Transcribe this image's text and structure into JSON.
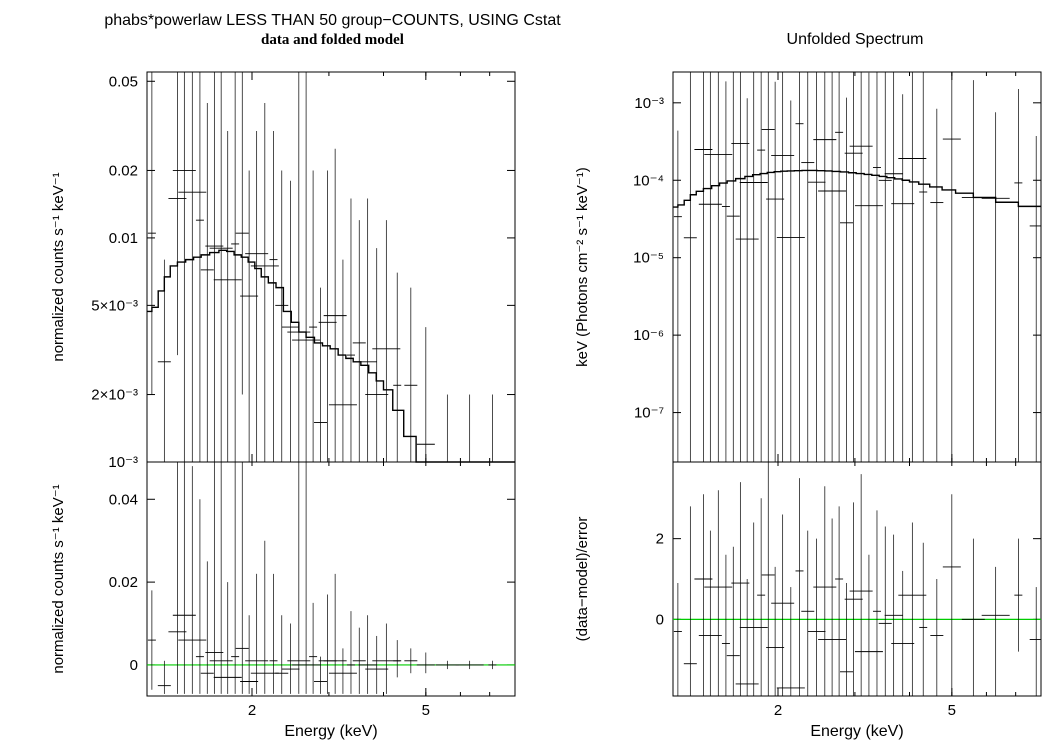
{
  "titles": {
    "left_main": "phabs*powerlaw LESS THAN 50 group−COUNTS, USING Cstat",
    "left_sub": "data and folded model",
    "right": "Unfolded Spectrum"
  },
  "colors": {
    "data": "#000000",
    "model": "#000000",
    "zero_line": "#00cc00",
    "frame": "#000000"
  },
  "chart_data": [
    {
      "id": "left_top",
      "type": "line",
      "ylabel": "normalized counts s⁻¹ keV⁻¹",
      "xscale": "log",
      "yscale": "log",
      "xlim": [
        1.15,
        8.0
      ],
      "ylim": [
        0.001,
        0.055
      ],
      "yticks": [
        {
          "v": 0.05,
          "label": "0.05"
        },
        {
          "v": 0.02,
          "label": "0.02"
        },
        {
          "v": 0.01,
          "label": "0.01"
        },
        {
          "v": 0.005,
          "label": "5×10⁻³"
        },
        {
          "v": 0.002,
          "label": "2×10⁻³"
        },
        {
          "v": 0.001,
          "label": "10⁻³"
        }
      ],
      "model_steps": [
        [
          1.15,
          0.0047
        ],
        [
          1.18,
          0.0049
        ],
        [
          1.22,
          0.0058
        ],
        [
          1.26,
          0.0067
        ],
        [
          1.3,
          0.0075
        ],
        [
          1.35,
          0.0078
        ],
        [
          1.41,
          0.008
        ],
        [
          1.47,
          0.0082
        ],
        [
          1.53,
          0.0084
        ],
        [
          1.6,
          0.0086
        ],
        [
          1.68,
          0.0088
        ],
        [
          1.75,
          0.0087
        ],
        [
          1.82,
          0.0084
        ],
        [
          1.89,
          0.0082
        ],
        [
          1.96,
          0.0078
        ],
        [
          2.03,
          0.0073
        ],
        [
          2.1,
          0.0067
        ],
        [
          2.18,
          0.0063
        ],
        [
          2.27,
          0.006
        ],
        [
          2.36,
          0.0047
        ],
        [
          2.46,
          0.0042
        ],
        [
          2.56,
          0.0038
        ],
        [
          2.66,
          0.0036
        ],
        [
          2.78,
          0.0034
        ],
        [
          2.9,
          0.0033
        ],
        [
          3.02,
          0.0032
        ],
        [
          3.15,
          0.003
        ],
        [
          3.28,
          0.0029
        ],
        [
          3.41,
          0.0028
        ],
        [
          3.55,
          0.0027
        ],
        [
          3.7,
          0.0025
        ],
        [
          3.85,
          0.0023
        ],
        [
          4.0,
          0.0021
        ],
        [
          4.2,
          0.0017
        ],
        [
          4.45,
          0.0013
        ],
        [
          4.75,
          0.001
        ],
        [
          5.1,
          0.001
        ]
      ],
      "points": [
        [
          1.18,
          0.0105,
          0.002,
          0.055
        ],
        [
          1.26,
          0.0028,
          0.001,
          0.008
        ],
        [
          1.35,
          0.015,
          0.003,
          0.055
        ],
        [
          1.4,
          0.02,
          0.001,
          0.055
        ],
        [
          1.46,
          0.016,
          0.001,
          0.055
        ],
        [
          1.52,
          0.012,
          0.001,
          0.055
        ],
        [
          1.58,
          0.0072,
          0.001,
          0.04
        ],
        [
          1.64,
          0.0092,
          0.001,
          0.055
        ],
        [
          1.7,
          0.009,
          0.001,
          0.055
        ],
        [
          1.76,
          0.0065,
          0.001,
          0.03
        ],
        [
          1.83,
          0.0094,
          0.001,
          0.055
        ],
        [
          1.9,
          0.0105,
          0.002,
          0.055
        ],
        [
          1.97,
          0.0055,
          0.001,
          0.02
        ],
        [
          2.05,
          0.0085,
          0.001,
          0.03
        ],
        [
          2.14,
          0.0075,
          0.001,
          0.04
        ],
        [
          2.24,
          0.008,
          0.001,
          0.03
        ],
        [
          2.34,
          0.005,
          0.001,
          0.02
        ],
        [
          2.45,
          0.004,
          0.001,
          0.018
        ],
        [
          2.56,
          0.0038,
          0.001,
          0.055
        ],
        [
          2.66,
          0.0035,
          0.001,
          0.055
        ],
        [
          2.76,
          0.004,
          0.001,
          0.02
        ],
        [
          2.87,
          0.0015,
          0.001,
          0.006
        ],
        [
          2.98,
          0.0042,
          0.001,
          0.02
        ],
        [
          3.1,
          0.0045,
          0.001,
          0.025
        ],
        [
          3.23,
          0.0018,
          0.001,
          0.008
        ],
        [
          3.37,
          0.003,
          0.001,
          0.015
        ],
        [
          3.52,
          0.0034,
          0.001,
          0.012
        ],
        [
          3.68,
          0.0028,
          0.001,
          0.015
        ],
        [
          3.86,
          0.002,
          0.001,
          0.009
        ],
        [
          4.06,
          0.0032,
          0.001,
          0.012
        ],
        [
          4.3,
          0.0022,
          0.001,
          0.007
        ],
        [
          4.62,
          0.0022,
          0.001,
          0.006
        ],
        [
          5.0,
          0.0012,
          0.001,
          0.004
        ],
        [
          5.6,
          0.0009,
          0.0006,
          0.002
        ],
        [
          6.3,
          0.0009,
          0.0006,
          0.002
        ],
        [
          7.1,
          0.0009,
          0.0006,
          0.002
        ]
      ]
    },
    {
      "id": "left_bottom",
      "type": "scatter",
      "xlabel": "Energy (keV)",
      "ylabel": "normalized counts s⁻¹ keV⁻¹",
      "xscale": "log",
      "yscale": "linear",
      "xlim": [
        1.15,
        8.0
      ],
      "ylim": [
        -0.0075,
        0.049
      ],
      "xticks": [
        {
          "v": 2,
          "label": "2"
        },
        {
          "v": 5,
          "label": "5"
        }
      ],
      "yticks": [
        {
          "v": 0.04,
          "label": "0.04"
        },
        {
          "v": 0.02,
          "label": "0.02"
        },
        {
          "v": 0,
          "label": "0"
        }
      ],
      "zero_line": 0,
      "points": [
        [
          1.18,
          0.006,
          -0.006,
          0.018
        ],
        [
          1.26,
          -0.005,
          -0.007,
          0.001
        ],
        [
          1.35,
          0.008,
          -0.007,
          0.049
        ],
        [
          1.4,
          0.012,
          -0.007,
          0.049
        ],
        [
          1.46,
          0.006,
          -0.007,
          0.048
        ],
        [
          1.52,
          0.002,
          -0.007,
          0.04
        ],
        [
          1.58,
          -0.002,
          -0.007,
          0.025
        ],
        [
          1.64,
          0.003,
          -0.007,
          0.049
        ],
        [
          1.7,
          0.001,
          -0.007,
          0.049
        ],
        [
          1.76,
          -0.003,
          -0.007,
          0.02
        ],
        [
          1.83,
          0.002,
          -0.007,
          0.049
        ],
        [
          1.9,
          0.004,
          -0.007,
          0.049
        ],
        [
          1.97,
          -0.004,
          -0.007,
          0.012
        ],
        [
          2.05,
          0.001,
          -0.007,
          0.022
        ],
        [
          2.14,
          -0.002,
          -0.007,
          0.03
        ],
        [
          2.24,
          0.001,
          -0.007,
          0.022
        ],
        [
          2.34,
          -0.002,
          -0.007,
          0.012
        ],
        [
          2.45,
          -0.001,
          -0.007,
          0.01
        ],
        [
          2.56,
          0.001,
          -0.007,
          0.049
        ],
        [
          2.66,
          0.0,
          -0.007,
          0.049
        ],
        [
          2.76,
          0.002,
          -0.007,
          0.015
        ],
        [
          2.87,
          -0.004,
          -0.007,
          0.002
        ],
        [
          2.98,
          0.001,
          -0.007,
          0.017
        ],
        [
          3.1,
          0.001,
          -0.007,
          0.022
        ],
        [
          3.23,
          -0.002,
          -0.007,
          0.004
        ],
        [
          3.37,
          0.0,
          -0.007,
          0.013
        ],
        [
          3.52,
          0.001,
          -0.007,
          0.009
        ],
        [
          3.68,
          0.0,
          -0.007,
          0.012
        ],
        [
          3.86,
          -0.001,
          -0.007,
          0.007
        ],
        [
          4.06,
          0.001,
          -0.007,
          0.01
        ],
        [
          4.3,
          0.001,
          -0.003,
          0.006
        ],
        [
          4.62,
          0.001,
          -0.002,
          0.004
        ],
        [
          5.0,
          0.0,
          -0.002,
          0.003
        ],
        [
          5.6,
          0.0,
          -0.001,
          0.001
        ],
        [
          6.3,
          0.0,
          -0.001,
          0.001
        ],
        [
          7.1,
          0.0,
          -0.001,
          0.001
        ]
      ]
    },
    {
      "id": "right_top",
      "type": "line",
      "ylabel": "keV (Photons cm⁻² s⁻¹ keV⁻¹)",
      "xscale": "log",
      "yscale": "log",
      "xlim": [
        1.15,
        8.0
      ],
      "ylim": [
        2.3e-08,
        0.0025
      ],
      "yticks": [
        {
          "v": 0.001,
          "label": "10⁻³"
        },
        {
          "v": 0.0001,
          "label": "10⁻⁴"
        },
        {
          "v": 1e-05,
          "label": "10⁻⁵"
        },
        {
          "v": 1e-06,
          "label": "10⁻⁶"
        },
        {
          "v": 1e-07,
          "label": "10⁻⁷"
        }
      ],
      "model_steps": [
        [
          1.15,
          4.5e-05
        ],
        [
          1.18,
          4.8e-05
        ],
        [
          1.22,
          5.5e-05
        ],
        [
          1.26,
          6.5e-05
        ],
        [
          1.3,
          7.2e-05
        ],
        [
          1.35,
          7.8e-05
        ],
        [
          1.41,
          8.5e-05
        ],
        [
          1.47,
          9.2e-05
        ],
        [
          1.53,
          9.8e-05
        ],
        [
          1.6,
          0.000105
        ],
        [
          1.68,
          0.000112
        ],
        [
          1.75,
          0.000118
        ],
        [
          1.82,
          0.000122
        ],
        [
          1.89,
          0.000126
        ],
        [
          1.96,
          0.000129
        ],
        [
          2.03,
          0.000131
        ],
        [
          2.1,
          0.000132
        ],
        [
          2.18,
          0.000133
        ],
        [
          2.27,
          0.000134
        ],
        [
          2.36,
          0.000134
        ],
        [
          2.46,
          0.000133
        ],
        [
          2.56,
          0.000132
        ],
        [
          2.66,
          0.00013
        ],
        [
          2.78,
          0.000128
        ],
        [
          2.9,
          0.000125
        ],
        [
          3.02,
          0.000122
        ],
        [
          3.15,
          0.000119
        ],
        [
          3.28,
          0.000116
        ],
        [
          3.41,
          0.000112
        ],
        [
          3.55,
          0.000108
        ],
        [
          3.7,
          0.000104
        ],
        [
          3.85,
          0.0001
        ],
        [
          4.0,
          9.5e-05
        ],
        [
          4.2,
          8.9e-05
        ],
        [
          4.45,
          8.2e-05
        ],
        [
          4.75,
          7.5e-05
        ],
        [
          5.1,
          6.8e-05
        ],
        [
          5.6,
          6e-05
        ],
        [
          6.3,
          5.2e-05
        ],
        [
          7.1,
          4.6e-05
        ],
        [
          8.0,
          4.6e-05
        ]
      ]
    },
    {
      "id": "right_bottom",
      "type": "scatter",
      "xlabel": "Energy (keV)",
      "ylabel": "(data−model)/error",
      "xscale": "log",
      "yscale": "linear",
      "xlim": [
        1.15,
        8.0
      ],
      "ylim": [
        -1.9,
        3.9
      ],
      "xticks": [
        {
          "v": 2,
          "label": "2"
        },
        {
          "v": 5,
          "label": "5"
        }
      ],
      "yticks": [
        {
          "v": 2,
          "label": "2"
        },
        {
          "v": 0,
          "label": "0"
        }
      ],
      "zero_line": 0,
      "points": [
        [
          1.18,
          -0.3,
          -1.9,
          0.9
        ],
        [
          1.26,
          -1.1,
          -1.9,
          2.8
        ],
        [
          1.35,
          1.0,
          -1.9,
          3.1
        ],
        [
          1.4,
          -0.4,
          -1.9,
          2.2
        ],
        [
          1.46,
          0.8,
          -1.9,
          3.2
        ],
        [
          1.52,
          -0.6,
          -1.9,
          1.6
        ],
        [
          1.58,
          -0.9,
          -1.9,
          1.8
        ],
        [
          1.64,
          0.9,
          -1.9,
          3.4
        ],
        [
          1.7,
          -1.6,
          -1.9,
          1.0
        ],
        [
          1.76,
          -0.2,
          -1.9,
          2.4
        ],
        [
          1.83,
          0.6,
          -1.9,
          3.0
        ],
        [
          1.9,
          1.1,
          -1.9,
          3.9
        ],
        [
          1.97,
          -0.7,
          -1.9,
          1.3
        ],
        [
          2.05,
          0.4,
          -1.9,
          2.6
        ],
        [
          2.14,
          -1.7,
          -1.9,
          0.8
        ],
        [
          2.24,
          1.2,
          -1.9,
          3.5
        ],
        [
          2.34,
          0.2,
          -1.9,
          2.2
        ],
        [
          2.45,
          -0.3,
          -1.9,
          2.0
        ],
        [
          2.56,
          0.8,
          -1.9,
          3.3
        ],
        [
          2.66,
          -0.5,
          -1.9,
          2.5
        ],
        [
          2.76,
          1.0,
          -1.9,
          2.8
        ],
        [
          2.87,
          -1.3,
          -1.9,
          0.9
        ],
        [
          2.98,
          0.5,
          -1.9,
          2.9
        ],
        [
          3.1,
          0.7,
          -1.9,
          3.6
        ],
        [
          3.23,
          -0.8,
          -1.9,
          1.6
        ],
        [
          3.37,
          0.2,
          -1.9,
          2.7
        ],
        [
          3.52,
          -0.1,
          -1.9,
          2.3
        ],
        [
          3.68,
          0.1,
          -1.9,
          2.1
        ],
        [
          3.86,
          -0.6,
          -1.9,
          1.2
        ],
        [
          4.06,
          0.6,
          -1.9,
          2.4
        ],
        [
          4.3,
          -0.2,
          -1.9,
          1.9
        ],
        [
          4.62,
          -0.4,
          -1.9,
          1.0
        ],
        [
          5.0,
          1.3,
          -1.9,
          3.1
        ],
        [
          5.6,
          0.0,
          -1.9,
          2.0
        ],
        [
          6.3,
          0.1,
          -1.9,
          1.3
        ],
        [
          7.1,
          0.6,
          -0.8,
          2.0
        ],
        [
          7.8,
          -0.5,
          -1.9,
          0.8
        ]
      ]
    }
  ]
}
